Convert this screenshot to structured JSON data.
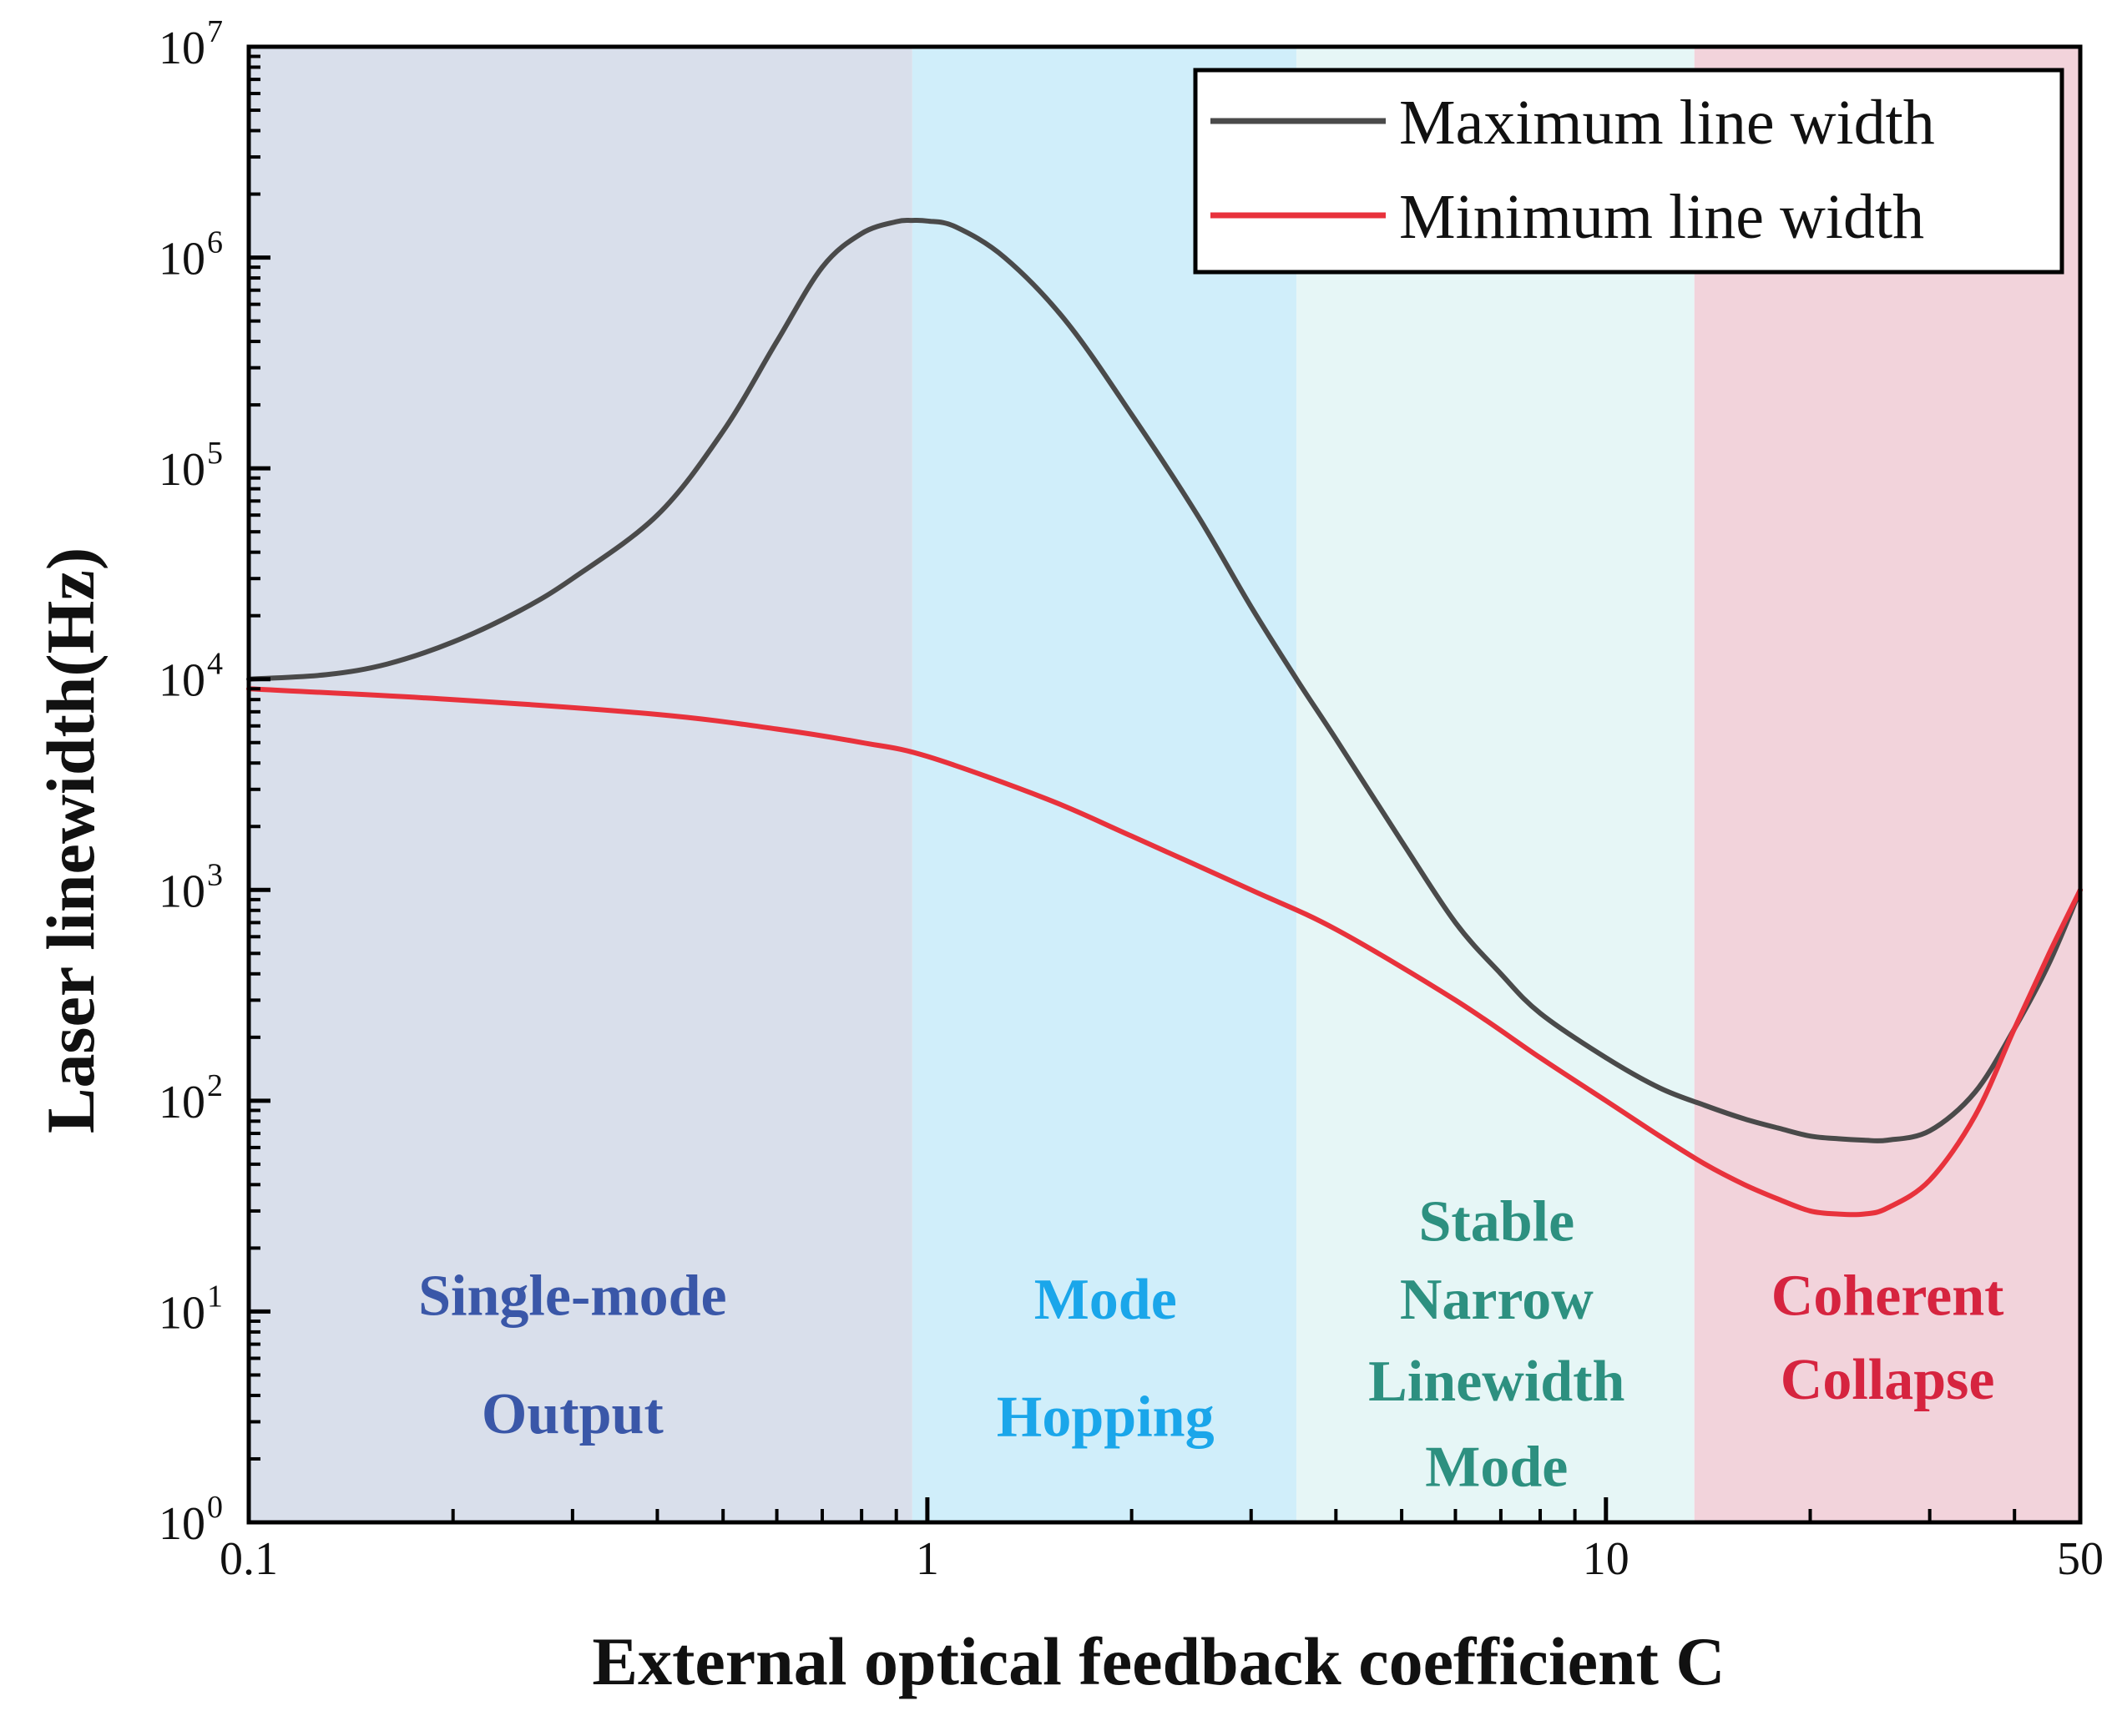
{
  "chart_data": {
    "type": "line",
    "title": "",
    "xlabel": "External optical feedback coefficient C",
    "ylabel": "Laser linewidth(Hz)",
    "xscale": "log",
    "yscale": "log",
    "xlim": [
      0.1,
      50
    ],
    "ylim": [
      1,
      10000000
    ],
    "x_ticks": [
      {
        "value": 0.1,
        "label": "0.1"
      },
      {
        "value": 1,
        "label": "1"
      },
      {
        "value": 10,
        "label": "10"
      },
      {
        "value": 50,
        "label": "50"
      }
    ],
    "y_ticks": [
      {
        "value": 1,
        "base": "10",
        "exp": "0"
      },
      {
        "value": 10,
        "base": "10",
        "exp": "1"
      },
      {
        "value": 100,
        "base": "10",
        "exp": "2"
      },
      {
        "value": 1000,
        "base": "10",
        "exp": "3"
      },
      {
        "value": 10000,
        "base": "10",
        "exp": "4"
      },
      {
        "value": 100000,
        "base": "10",
        "exp": "5"
      },
      {
        "value": 1000000,
        "base": "10",
        "exp": "6"
      },
      {
        "value": 10000000,
        "base": "10",
        "exp": "7"
      }
    ],
    "regions": [
      {
        "name": "single-mode",
        "x_from": 0.1,
        "x_to": 0.95,
        "color": "#d9dfeb",
        "text_color": "#3a57a8",
        "lines": [
          "Single-mode",
          "Output"
        ],
        "label_x": 0.3,
        "label_y": [
          12,
          3.3
        ]
      },
      {
        "name": "mode-hopping",
        "x_from": 0.95,
        "x_to": 3.5,
        "color": "#d0eefa",
        "text_color": "#1aa6ea",
        "lines": [
          "Mode",
          "Hopping"
        ],
        "label_x": 1.83,
        "label_y": [
          11.5,
          3.2
        ]
      },
      {
        "name": "stable-narrow",
        "x_from": 3.5,
        "x_to": 13.5,
        "color": "#e6f6f6",
        "text_color": "#2d9080",
        "lines": [
          "Stable",
          "Narrow",
          "Linewidth",
          "Mode"
        ],
        "label_x": 6.9,
        "label_y": [
          27,
          11.5,
          4.7,
          1.85
        ]
      },
      {
        "name": "coherent-collapse",
        "x_from": 13.5,
        "x_to": 50,
        "color": "#f2d3db",
        "text_color": "#d6243f",
        "lines": [
          "Coherent",
          "Collapse"
        ],
        "label_x": 26,
        "label_y": [
          12,
          4.8
        ]
      }
    ],
    "series": [
      {
        "name": "Maximum line width",
        "color": "#4a4a4a",
        "x": [
          0.1,
          0.13,
          0.16,
          0.2,
          0.25,
          0.3,
          0.4,
          0.5,
          0.6,
          0.7,
          0.8,
          0.9,
          0.95,
          1.0,
          1.1,
          1.3,
          1.6,
          2.0,
          2.5,
          3.0,
          3.5,
          4.0,
          5.0,
          6.0,
          7.0,
          8.0,
          10.0,
          12.0,
          14.0,
          16.0,
          18.0,
          20.0,
          22.0,
          24.0,
          26.0,
          30.0,
          35.0,
          40.0,
          45.0,
          50.0
        ],
        "y": [
          10000,
          10500,
          11800,
          15000,
          21000,
          30000,
          60000,
          150000,
          400000,
          900000,
          1300000,
          1480000,
          1500000,
          1490000,
          1400000,
          1000000,
          500000,
          180000,
          60000,
          22000,
          10000,
          5200,
          1700,
          700,
          400,
          260,
          160,
          115,
          95,
          82,
          74,
          68,
          66,
          65,
          65,
          72,
          110,
          220,
          450,
          1000
        ]
      },
      {
        "name": "Minimum line width",
        "color": "#e8323c",
        "x": [
          0.1,
          0.2,
          0.4,
          0.6,
          0.8,
          1.0,
          1.5,
          2.0,
          3.0,
          4.0,
          6.0,
          8.0,
          10.0,
          12.0,
          14.0,
          16.0,
          18.0,
          20.0,
          22.0,
          24.0,
          26.0,
          30.0,
          35.0,
          40.0,
          45.0,
          50.0
        ],
        "y": [
          9000,
          8000,
          6800,
          5800,
          5000,
          4300,
          2700,
          1800,
          1000,
          650,
          300,
          160,
          100,
          68,
          50,
          40,
          34,
          30,
          29,
          29,
          31,
          42,
          85,
          220,
          500,
          1000
        ]
      }
    ],
    "legend_position": "top-right"
  }
}
